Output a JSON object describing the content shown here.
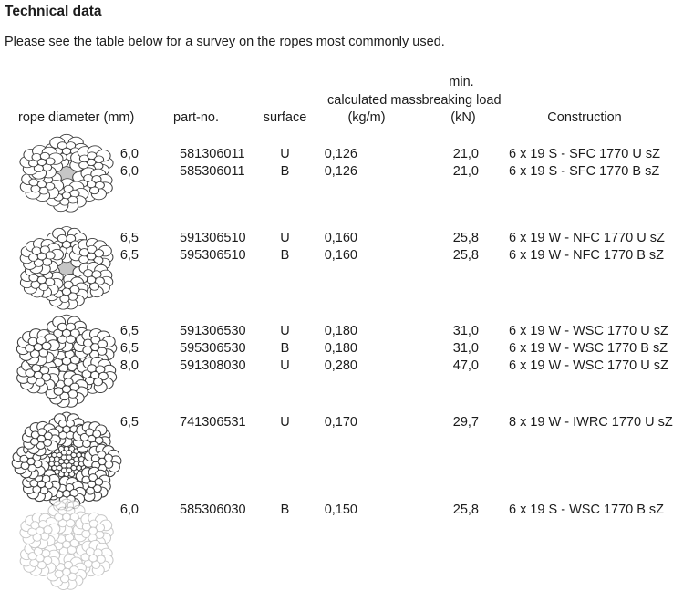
{
  "page": {
    "title": "Technical data",
    "intro": "Please see the table below for a survey on the ropes most commonly used."
  },
  "colors": {
    "text": "#1c1c1c",
    "fiber_core_gray": "#c6c6c6",
    "wire_outline": "#3d3d3d",
    "wire_outline_faded": "#b4b4b4"
  },
  "table": {
    "headers": {
      "min_line": "min.",
      "calculated_mass": "calculated mass",
      "breaking_load": "breaking load",
      "rope_diameter": "rope diameter (mm)",
      "part_no": "part-no.",
      "surface": "surface",
      "kg_m": "(kg/m)",
      "kn": "(kN)",
      "construction": "Construction"
    },
    "groups": [
      {
        "icon": "rope-section-6x19S-SFC-icon",
        "rows": [
          {
            "diameter": "6,0",
            "part_no": "581306011",
            "surface": "U",
            "mass": "0,126",
            "breaking_load": "21,0",
            "construction": "6 x 19 S - SFC 1770 U sZ"
          },
          {
            "diameter": "6,0",
            "part_no": "585306011",
            "surface": "B",
            "mass": "0,126",
            "breaking_load": "21,0",
            "construction": "6 x 19 S - SFC 1770 B sZ"
          }
        ]
      },
      {
        "icon": "rope-section-6x19W-NFC-icon",
        "rows": [
          {
            "diameter": "6,5",
            "part_no": "591306510",
            "surface": "U",
            "mass": "0,160",
            "breaking_load": "25,8",
            "construction": "6 x 19 W - NFC 1770 U sZ"
          },
          {
            "diameter": "6,5",
            "part_no": "595306510",
            "surface": "B",
            "mass": "0,160",
            "breaking_load": "25,8",
            "construction": "6 x 19 W - NFC 1770 B sZ"
          }
        ]
      },
      {
        "icon": "rope-section-6x19W-WSC-icon",
        "rows": [
          {
            "diameter": "6,5",
            "part_no": "591306530",
            "surface": "U",
            "mass": "0,180",
            "breaking_load": "31,0",
            "construction": "6 x 19 W - WSC 1770 U sZ"
          },
          {
            "diameter": "6,5",
            "part_no": "595306530",
            "surface": "B",
            "mass": "0,180",
            "breaking_load": "31,0",
            "construction": "6 x 19 W - WSC 1770 B sZ"
          },
          {
            "diameter": "8,0",
            "part_no": "591308030",
            "surface": "U",
            "mass": "0,280",
            "breaking_load": "47,0",
            "construction": "6 x 19 W - WSC 1770 U sZ"
          }
        ]
      },
      {
        "icon": "rope-section-8x19W-IWRC-icon",
        "rows": [
          {
            "diameter": "6,5",
            "part_no": "741306531",
            "surface": "U",
            "mass": "0,170",
            "breaking_load": "29,7",
            "construction": "8 x 19 W - IWRC 1770 U sZ"
          }
        ]
      },
      {
        "icon": "rope-section-6x19S-WSC-icon",
        "rows": [
          {
            "diameter": "6,0",
            "part_no": "585306030",
            "surface": "B",
            "mass": "0,150",
            "breaking_load": "25,8",
            "construction": "6 x 19 S - WSC 1770 B sZ"
          }
        ]
      }
    ]
  }
}
